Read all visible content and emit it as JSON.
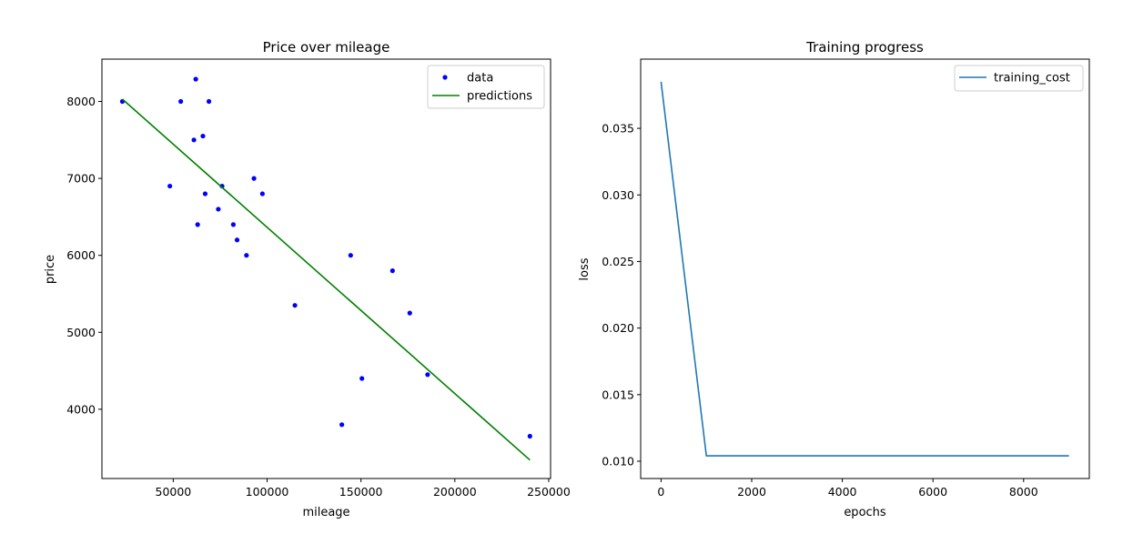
{
  "chart_data": [
    {
      "type": "scatter",
      "title": "Price over mileage",
      "xlabel": "mileage",
      "ylabel": "price",
      "xlim": [
        12000,
        251000
      ],
      "ylim": [
        3100,
        8550
      ],
      "xticks": [
        50000,
        100000,
        150000,
        200000,
        250000
      ],
      "yticks": [
        4000,
        5000,
        6000,
        7000,
        8000
      ],
      "grid": false,
      "legend": "top-right",
      "series": [
        {
          "name": "data",
          "kind": "scatter",
          "color": "#0000ff",
          "points": [
            [
              240000,
              3650
            ],
            [
              139800,
              3800
            ],
            [
              150500,
              4400
            ],
            [
              185500,
              4450
            ],
            [
              176000,
              5250
            ],
            [
              114800,
              5350
            ],
            [
              166800,
              5800
            ],
            [
              89000,
              6000
            ],
            [
              144500,
              6000
            ],
            [
              84000,
              6200
            ],
            [
              82000,
              6400
            ],
            [
              63000,
              6400
            ],
            [
              74000,
              6600
            ],
            [
              97500,
              6800
            ],
            [
              67000,
              6800
            ],
            [
              76000,
              6900
            ],
            [
              48200,
              6900
            ],
            [
              93000,
              7000
            ],
            [
              61000,
              7500
            ],
            [
              65800,
              7550
            ],
            [
              69000,
              8000
            ],
            [
              54000,
              8000
            ],
            [
              22900,
              8000
            ],
            [
              62000,
              8290
            ]
          ]
        },
        {
          "name": "predictions",
          "kind": "line",
          "color": "#008000",
          "points": [
            [
              22900,
              8030
            ],
            [
              240000,
              3340
            ]
          ]
        }
      ]
    },
    {
      "type": "line",
      "title": "Training progress",
      "xlabel": "epochs",
      "ylabel": "loss",
      "xlim": [
        -450,
        9450
      ],
      "ylim": [
        0.0087,
        0.0402
      ],
      "xticks": [
        0,
        2000,
        4000,
        6000,
        8000
      ],
      "yticks": [
        0.01,
        0.015,
        0.02,
        0.025,
        0.03,
        0.035
      ],
      "ytick_labels": [
        "0.010",
        "0.015",
        "0.020",
        "0.025",
        "0.030",
        "0.035"
      ],
      "grid": false,
      "legend": "top-right",
      "series": [
        {
          "name": "training_cost",
          "kind": "line",
          "color": "#1f77b4",
          "points": [
            [
              0,
              0.0385
            ],
            [
              1000,
              0.0104
            ],
            [
              2000,
              0.0104
            ],
            [
              3000,
              0.0104
            ],
            [
              4000,
              0.0104
            ],
            [
              5000,
              0.0104
            ],
            [
              6000,
              0.0104
            ],
            [
              7000,
              0.0104
            ],
            [
              8000,
              0.0104
            ],
            [
              9000,
              0.0104
            ]
          ]
        }
      ]
    }
  ]
}
